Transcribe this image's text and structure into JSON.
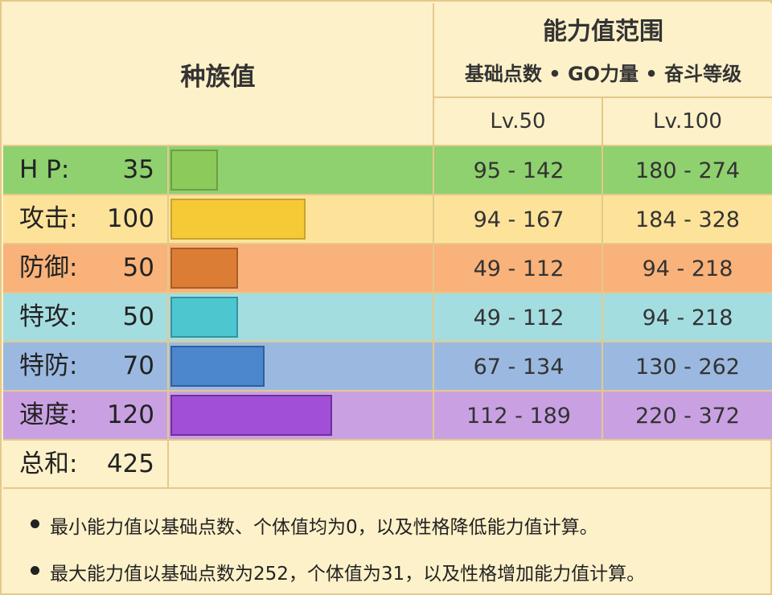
{
  "header": {
    "species_title": "种族值",
    "range_title": "能力值范围",
    "range_subtitle": "基础点数 • GO力量 • 奋斗等级",
    "lv50": "Lv.50",
    "lv100": "Lv.100"
  },
  "stats": [
    {
      "name": "H P:",
      "value": "35",
      "bar_fraction": 0.208,
      "lv50": "95 - 142",
      "lv100": "180 - 274",
      "row_color": "#8fd06f",
      "bar_color": "#8ccb5b",
      "bar_border": "#6a9f45"
    },
    {
      "name": "攻击:",
      "value": "100",
      "bar_fraction": 0.594,
      "lv50": "94 - 167",
      "lv100": "184 - 328",
      "row_color": "#fde39a",
      "bar_color": "#f6c936",
      "bar_border": "#c9a42b"
    },
    {
      "name": "防御:",
      "value": "50",
      "bar_fraction": 0.297,
      "lv50": "49 - 112",
      "lv100": "94 - 218",
      "row_color": "#f8b27a",
      "bar_color": "#dc7d36",
      "bar_border": "#a85d27"
    },
    {
      "name": "特攻:",
      "value": "50",
      "bar_fraction": 0.297,
      "lv50": "49 - 112",
      "lv100": "94 - 218",
      "row_color": "#a4dde0",
      "bar_color": "#4dc6d0",
      "bar_border": "#3494a0"
    },
    {
      "name": "特防:",
      "value": "70",
      "bar_fraction": 0.416,
      "lv50": "67 - 134",
      "lv100": "130 - 262",
      "row_color": "#9bb9e0",
      "bar_color": "#4c86cc",
      "bar_border": "#2f5f9c"
    },
    {
      "name": "速度:",
      "value": "120",
      "bar_fraction": 0.713,
      "lv50": "112 - 189",
      "lv100": "220 - 372",
      "row_color": "#c9a1e3",
      "bar_color": "#a14fd6",
      "bar_border": "#6f2f9c"
    }
  ],
  "total": {
    "name": "总和:",
    "value": "425",
    "row_color": "#fdf1c9"
  },
  "notes": [
    "最小能力值以基础点数、个体值均为0，以及性格降低能力值计算。",
    "最大能力值以基础点数为252，个体值为31，以及性格增加能力值计算。"
  ]
}
